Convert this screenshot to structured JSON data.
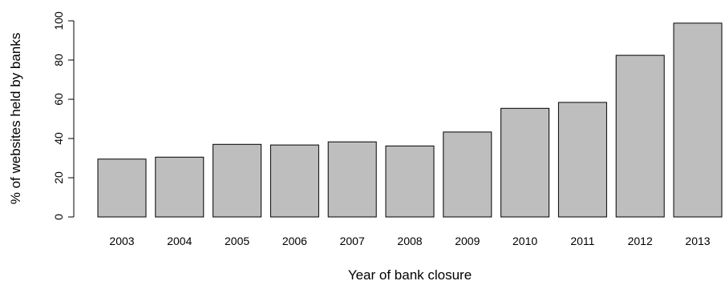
{
  "chart_data": {
    "type": "bar",
    "categories": [
      "2003",
      "2004",
      "2005",
      "2006",
      "2007",
      "2008",
      "2009",
      "2010",
      "2011",
      "2012",
      "2013"
    ],
    "values": [
      29.5,
      30.5,
      37,
      36.7,
      38.3,
      36.2,
      43.3,
      55.4,
      58.4,
      82.4,
      98.8
    ],
    "xlabel": "Year of bank closure",
    "ylabel": "% of websites held by banks",
    "ylim": [
      0,
      100
    ],
    "yticks": [
      "0",
      "20",
      "40",
      "60",
      "80",
      "100"
    ],
    "bar_color": "#bebebe",
    "grid": false,
    "legend": "none"
  }
}
